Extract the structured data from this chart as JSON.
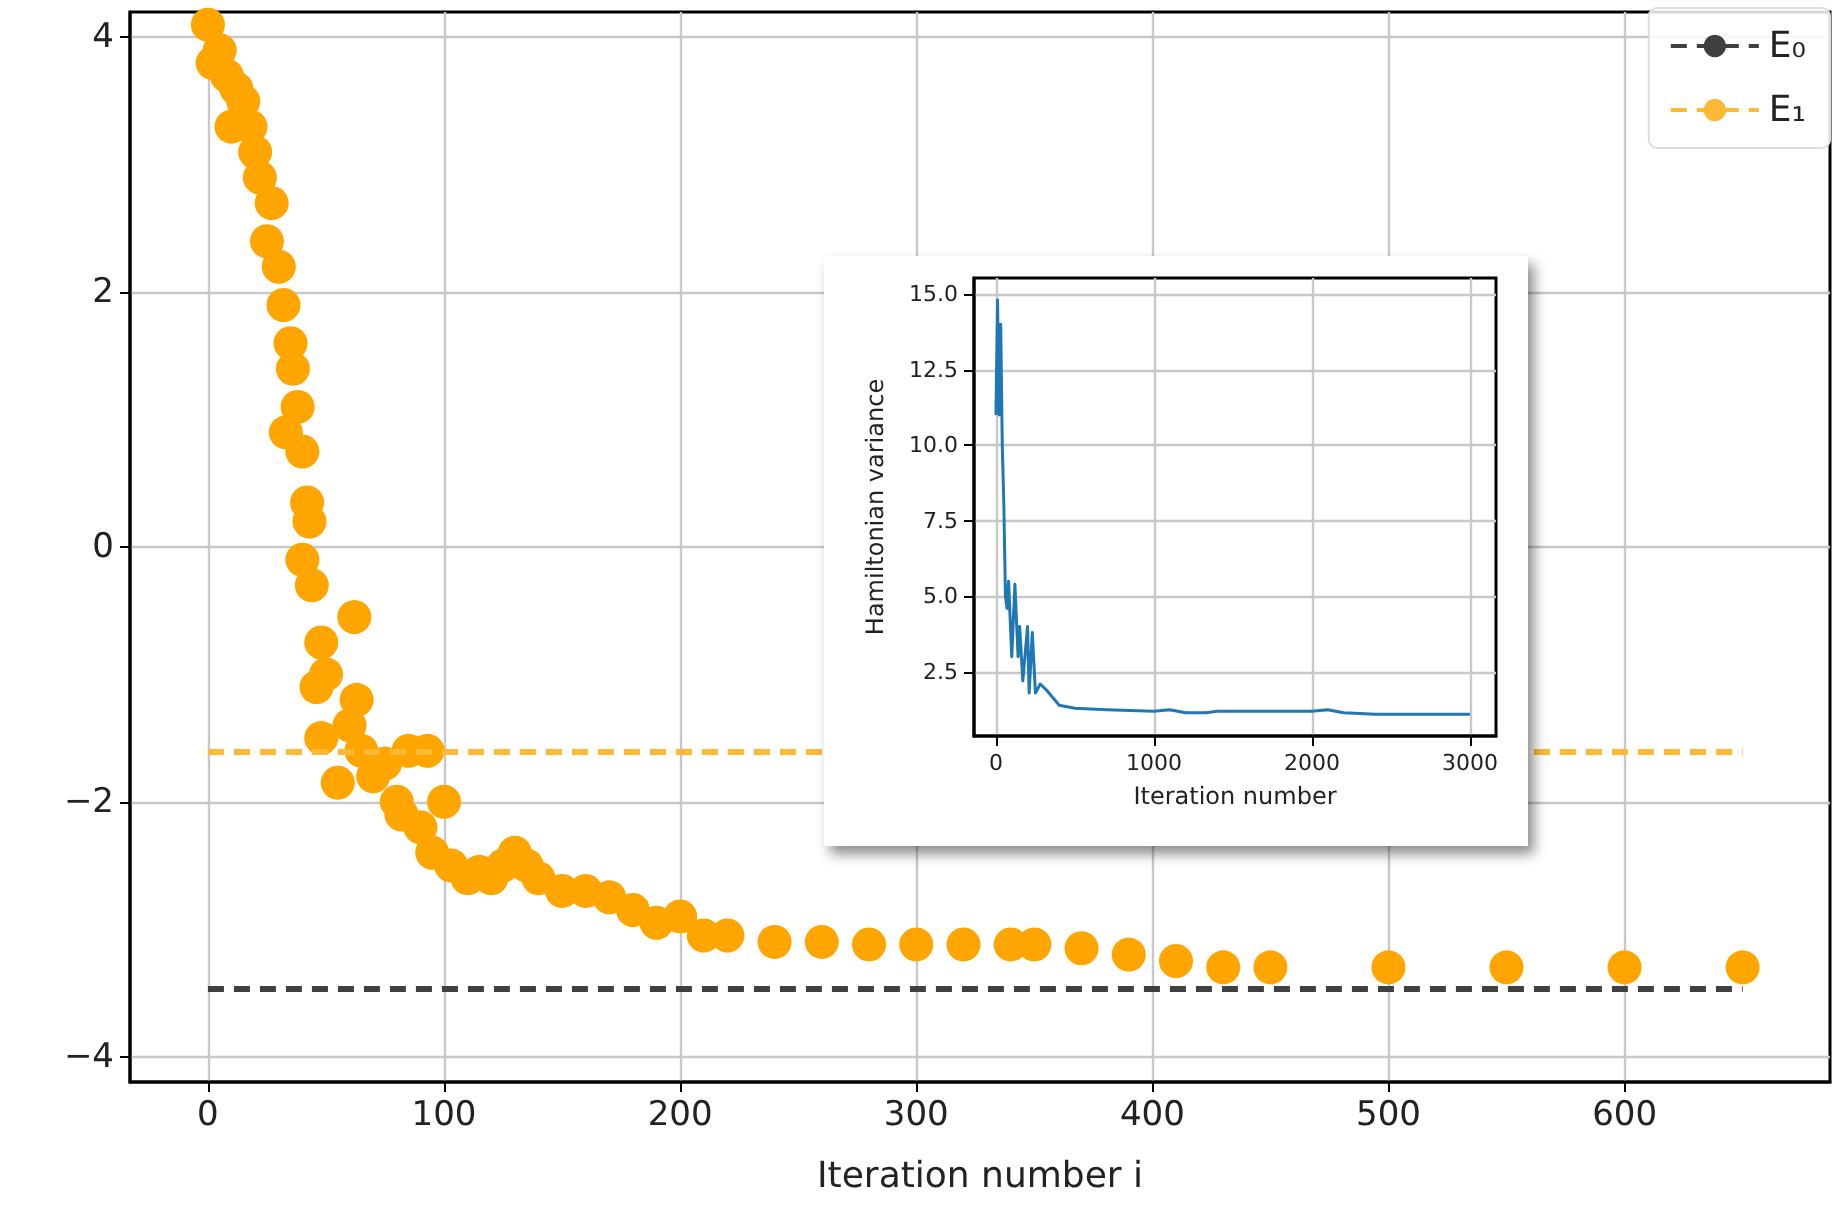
{
  "chart_data": [
    {
      "type": "scatter",
      "xlabel": "Iteration number i",
      "xlim": [
        -33,
        687
      ],
      "ylim": [
        -4.2,
        4.2
      ],
      "xticks": [
        0,
        100,
        200,
        300,
        400,
        500,
        600
      ],
      "yticks": [
        -4,
        -2,
        0,
        2,
        4
      ],
      "grid": true,
      "legend": "top right",
      "series": [
        {
          "color": "#ffa500",
          "marker": "circle",
          "x": [
            0,
            2,
            5,
            8,
            10,
            12,
            15,
            18,
            20,
            22,
            25,
            27,
            30,
            32,
            35,
            36,
            33,
            38,
            40,
            42,
            43,
            40,
            44,
            48,
            62,
            46,
            50,
            48,
            55,
            60,
            63,
            65,
            70,
            75,
            80,
            85,
            93,
            82,
            90,
            95,
            100,
            103,
            110,
            115,
            120,
            125,
            130,
            135,
            140,
            150,
            160,
            170,
            180,
            190,
            200,
            210,
            220,
            240,
            260,
            280,
            300,
            320,
            340,
            350,
            370,
            390,
            410,
            430,
            450,
            500,
            550,
            600,
            650
          ],
          "values": [
            4.1,
            3.8,
            3.9,
            3.7,
            3.3,
            3.6,
            3.5,
            3.3,
            3.1,
            2.9,
            2.4,
            2.7,
            2.2,
            1.9,
            1.6,
            1.4,
            0.9,
            1.1,
            0.75,
            0.35,
            0.2,
            -0.1,
            -0.3,
            -0.75,
            -0.55,
            -1.1,
            -1.0,
            -1.5,
            -1.85,
            -1.4,
            -1.2,
            -1.6,
            -1.8,
            -1.7,
            -2.0,
            -1.6,
            -1.6,
            -2.1,
            -2.2,
            -2.4,
            -2.0,
            -2.5,
            -2.6,
            -2.55,
            -2.6,
            -2.5,
            -2.4,
            -2.5,
            -2.6,
            -2.7,
            -2.7,
            -2.75,
            -2.85,
            -2.95,
            -2.9,
            -3.05,
            -3.05,
            -3.1,
            -3.1,
            -3.12,
            -3.12,
            -3.12,
            -3.12,
            -3.12,
            -3.15,
            -3.2,
            -3.25,
            -3.3,
            -3.3,
            -3.3,
            -3.3,
            -3.3,
            -3.3
          ]
        },
        {
          "type": "line",
          "name": "E₀",
          "color": "#404040",
          "line_style": "dashed",
          "marker": "none",
          "x": [
            0,
            650
          ],
          "values": [
            -3.47,
            -3.47
          ]
        },
        {
          "type": "line",
          "name": "E₁",
          "color": "#ffb833",
          "line_style": "dashed",
          "marker": "none",
          "x": [
            0,
            650
          ],
          "values": [
            -1.61,
            -1.61
          ]
        }
      ]
    },
    {
      "type": "line",
      "xlabel": "Iteration number",
      "ylabel": "Hamiltonian variance",
      "xlim": [
        -139,
        3165
      ],
      "ylim": [
        0.38,
        15.53
      ],
      "xticks": [
        0,
        1000,
        2000,
        3000
      ],
      "yticks": [
        {
          "value": 2.5,
          "label": "2.5"
        },
        {
          "value": 5,
          "label": "5.0"
        },
        {
          "value": 7.5,
          "label": "7.5"
        },
        {
          "value": 10,
          "label": "10.0"
        },
        {
          "value": 12.5,
          "label": "12.5"
        },
        {
          "value": 15,
          "label": "15.0"
        }
      ],
      "grid": true,
      "series": [
        {
          "color": "#1f77b4",
          "x": [
            0,
            10,
            20,
            30,
            40,
            50,
            60,
            70,
            80,
            100,
            120,
            140,
            150,
            170,
            200,
            210,
            230,
            250,
            280,
            320,
            400,
            500,
            700,
            1000,
            1100,
            1200,
            1330,
            1400,
            2000,
            2100,
            2200,
            2400,
            3000
          ],
          "values": [
            11,
            14.8,
            11,
            14,
            10,
            8,
            5,
            4.6,
            5.5,
            3,
            5.4,
            3,
            4,
            2.2,
            4,
            1.8,
            3.8,
            1.8,
            2.1,
            1.9,
            1.4,
            1.3,
            1.25,
            1.2,
            1.25,
            1.15,
            1.15,
            1.2,
            1.2,
            1.25,
            1.15,
            1.1,
            1.1
          ]
        }
      ]
    }
  ]
}
